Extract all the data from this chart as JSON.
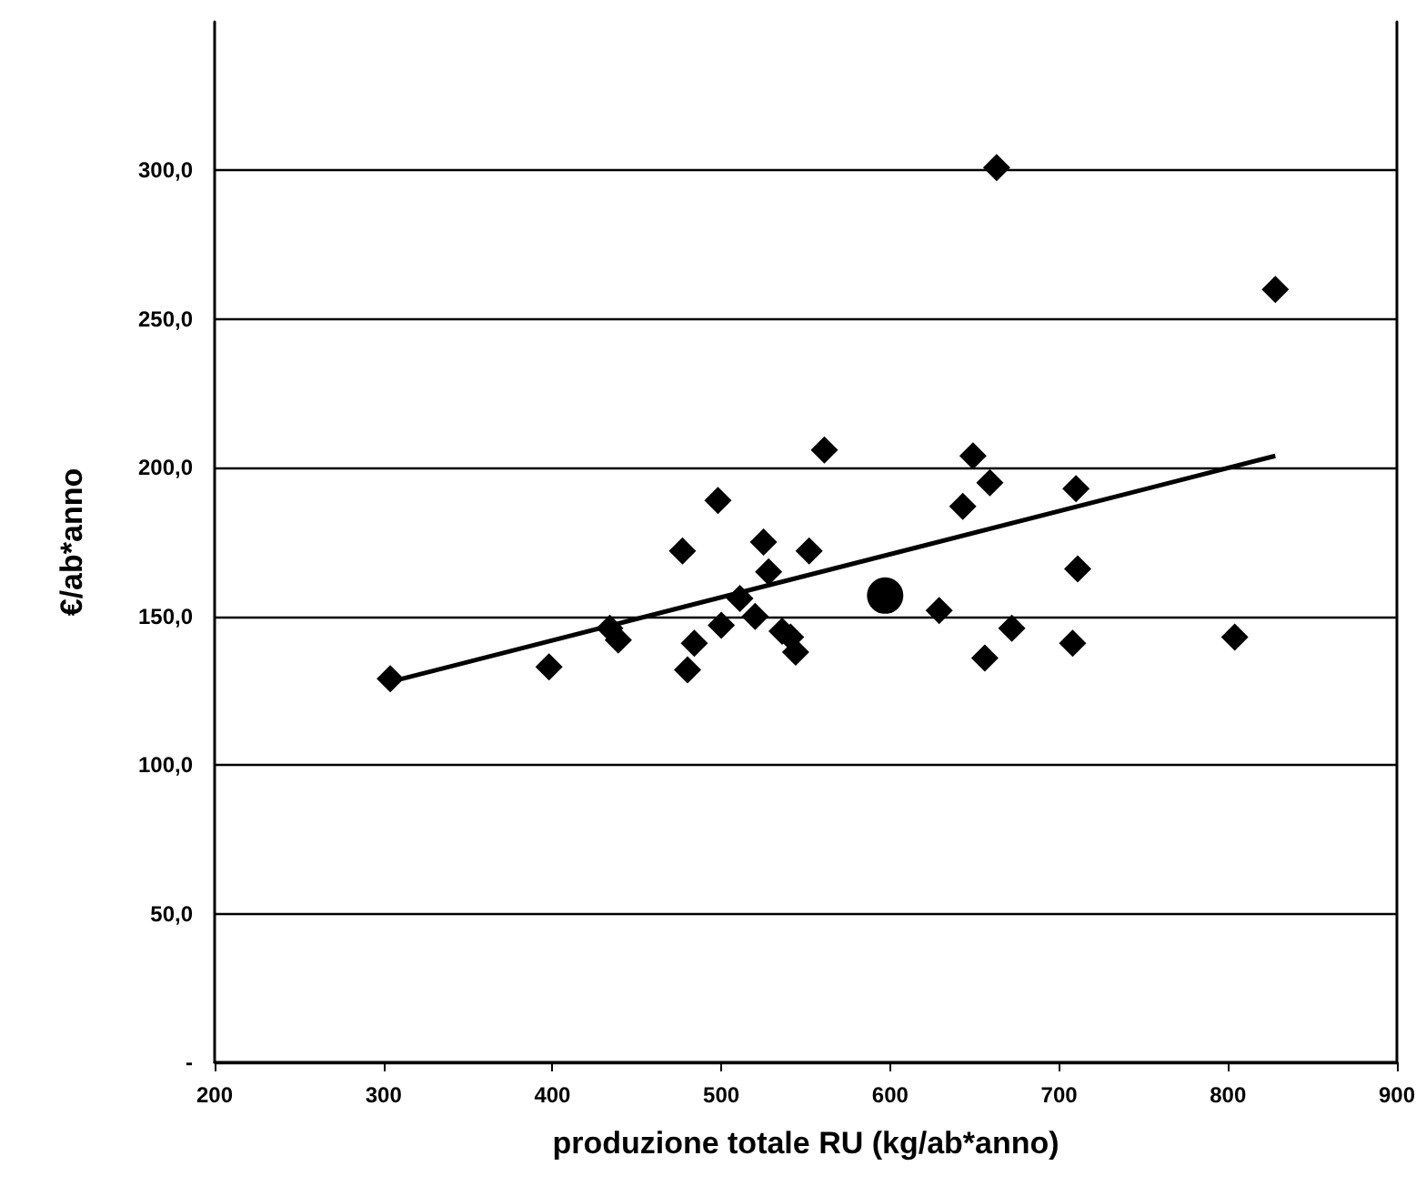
{
  "chart_data": {
    "type": "scatter",
    "xlabel": "produzione totale RU (kg/ab*anno)",
    "ylabel": "€/ab*anno",
    "xlim": [
      200,
      900
    ],
    "xticks": [
      200,
      300,
      400,
      500,
      600,
      700,
      800,
      900
    ],
    "ylim": [
      0,
      350
    ],
    "yticks": [
      {
        "value": 0,
        "label": "-"
      },
      {
        "value": 50,
        "label": "50,0"
      },
      {
        "value": 100,
        "label": "100,0"
      },
      {
        "value": 150,
        "label": "150,0"
      },
      {
        "value": 200,
        "label": "200,0"
      },
      {
        "value": 250,
        "label": "250,0"
      },
      {
        "value": 300,
        "label": "300,0"
      }
    ],
    "grid": "y",
    "series": [
      {
        "marker": "diamond",
        "color": "#000000",
        "x": [
          304,
          398,
          434,
          439,
          477,
          498,
          525,
          552,
          528,
          561,
          511,
          520,
          500,
          484,
          480,
          536,
          544,
          541,
          663,
          828,
          649,
          659,
          643,
          710,
          711,
          629,
          672,
          656,
          708,
          804
        ],
        "values": [
          129,
          133,
          146,
          142,
          172,
          189,
          175,
          172,
          165,
          206,
          156,
          150,
          147,
          141,
          132,
          145,
          138,
          143,
          301,
          260,
          204,
          195,
          187,
          193,
          166,
          152,
          146,
          136,
          141,
          143
        ]
      },
      {
        "marker": "circle",
        "color": "#000000",
        "x": [
          597
        ],
        "values": [
          157
        ]
      },
      {
        "type": "line",
        "marker": "none",
        "color": "#000000",
        "x": [
          304,
          828
        ],
        "values": [
          128,
          204
        ]
      }
    ]
  }
}
